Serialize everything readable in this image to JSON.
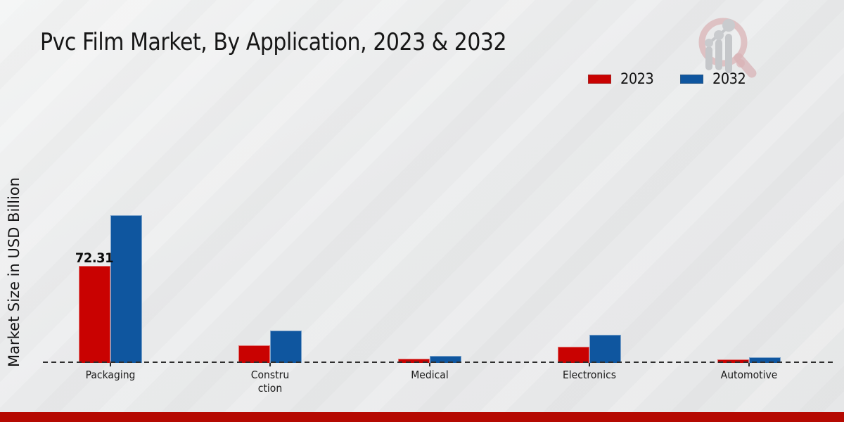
{
  "page": {
    "title": "Pvc Film Market, By Application, 2023 & 2032",
    "background_color": "#e9eaeb",
    "footer_bar_color": "#b50901"
  },
  "legend": {
    "position": "top-right",
    "items": [
      {
        "label": "2023",
        "color": "#c90201"
      },
      {
        "label": "2032",
        "color": "#0f569f"
      }
    ]
  },
  "watermark_icon": "growth-chart-magnifier-logo",
  "chart_data": {
    "type": "bar",
    "title": "Pvc Film Market, By Application, 2023 & 2032",
    "xlabel": "",
    "ylabel": "Market Size in USD Billion",
    "categories": [
      "Packaging",
      "Construction",
      "Medical",
      "Electronics",
      "Automotive"
    ],
    "category_display_lines": [
      [
        "Packaging"
      ],
      [
        "Constru",
        "ction"
      ],
      [
        "Medical"
      ],
      [
        "Electronics"
      ],
      [
        "Automotive"
      ]
    ],
    "series": [
      {
        "name": "2023",
        "color": "#c90201",
        "values": [
          72.31,
          13.2,
          3.1,
          12.0,
          2.6
        ]
      },
      {
        "name": "2032",
        "color": "#0f569f",
        "values": [
          109.6,
          24.0,
          5.2,
          20.9,
          4.2
        ]
      }
    ],
    "data_labels": [
      {
        "series": "2023",
        "category": "Packaging",
        "text": "72.31"
      }
    ],
    "ylim": [
      0,
      120
    ],
    "grid": false,
    "baseline_style": "dashed",
    "legend_position": "top-right"
  }
}
